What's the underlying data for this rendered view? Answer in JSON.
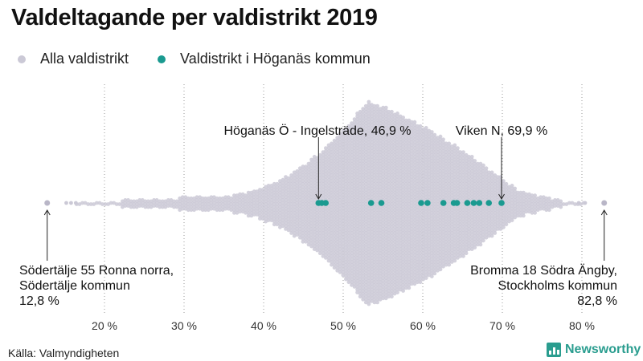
{
  "chart_data": {
    "type": "scatter",
    "title": "Valdeltagande per valdistrikt 2019",
    "xlim": [
      10,
      85
    ],
    "x_ticks": [
      20,
      30,
      40,
      50,
      60,
      70,
      80
    ],
    "x_tick_labels": [
      "20 %",
      "30 %",
      "40 %",
      "50 %",
      "60 %",
      "70 %",
      "80 %"
    ],
    "grid": "vertical dotted",
    "legend_position": "top-left",
    "series": [
      {
        "name": "Alla valdistrikt",
        "color": "#cbc9d6",
        "distribution": "beeswarm of all districts, range 12.8–82.8 %, densest around 53 %"
      },
      {
        "name": "Valdistrikt i Höganäs kommun",
        "color": "#1a9a90",
        "values": [
          46.9,
          47.3,
          47.8,
          53.5,
          54.8,
          59.8,
          60.6,
          62.6,
          63.9,
          64.3,
          65.6,
          66.4,
          67.1,
          68.3,
          69.9
        ]
      }
    ],
    "annotations": [
      {
        "label": "Höganäs Ö - Ingelsträde, 46,9 %",
        "x": 46.9,
        "lines": [
          "Höganäs Ö - Ingelsträde, 46,9 %"
        ]
      },
      {
        "label": "Viken N, 69,9 %",
        "x": 69.9,
        "lines": [
          "Viken N, 69,9 %"
        ]
      },
      {
        "label": "Södertälje 55 Ronna norra, Södertälje kommun 12,8 %",
        "x": 12.8,
        "lines": [
          "Södertälje 55 Ronna norra,",
          "Södertälje kommun",
          "12,8 %"
        ]
      },
      {
        "label": "Bromma 18 Södra Ängby, Stockholms kommun 82,8 %",
        "x": 82.8,
        "lines": [
          "Bromma 18 Södra Ängby,",
          "Stockholms kommun",
          "82,8 %"
        ]
      }
    ]
  },
  "source": "Källa: Valmyndigheten",
  "brand": "Newsworthy"
}
